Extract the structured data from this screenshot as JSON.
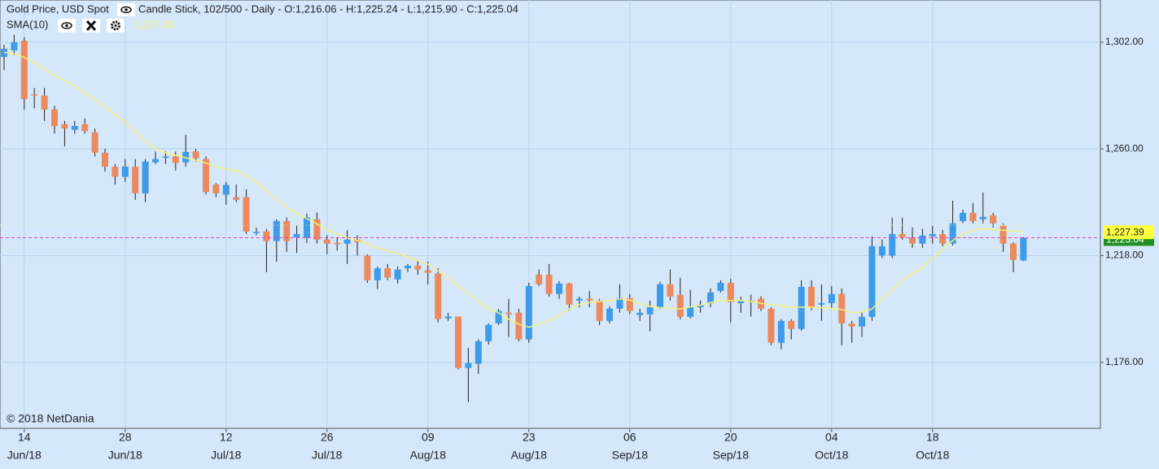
{
  "chart_data": {
    "type": "candlestick",
    "title": "Gold Price, USD Spot",
    "subtitle": "Candle Stick, 102/500 - Daily - O:1,216.06 - H:1,225.24 - L:1,215.90 - C:1,225.04",
    "copyright": "© 2018 NetDania",
    "up_color": "#3d9be9",
    "down_color": "#eb8a5e",
    "categories": [
      null,
      null,
      [
        "14",
        "Jun/18"
      ],
      null,
      null,
      null,
      null,
      null,
      null,
      null,
      null,
      null,
      [
        "28",
        "Jun/18"
      ],
      null,
      null,
      null,
      null,
      null,
      null,
      null,
      null,
      null,
      [
        "12",
        "Jul/18"
      ],
      null,
      null,
      null,
      null,
      null,
      null,
      null,
      null,
      null,
      [
        "26",
        "Jul/18"
      ],
      null,
      null,
      null,
      null,
      null,
      null,
      null,
      null,
      null,
      [
        "09",
        "Aug/18"
      ],
      null,
      null,
      null,
      null,
      null,
      null,
      null,
      null,
      null,
      [
        "23",
        "Aug/18"
      ],
      null,
      null,
      null,
      null,
      null,
      null,
      null,
      null,
      null,
      [
        "06",
        "Sep/18"
      ],
      null,
      null,
      null,
      null,
      null,
      null,
      null,
      null,
      null,
      [
        "20",
        "Sep/18"
      ],
      null,
      null,
      null,
      null,
      null,
      null,
      null,
      null,
      null,
      [
        "04",
        "Oct/18"
      ],
      null,
      null,
      null,
      null,
      null,
      null,
      null,
      null,
      null,
      [
        "18",
        "Oct/18"
      ],
      null,
      null,
      null,
      null,
      null,
      null,
      null,
      null,
      null
    ],
    "open": [
      1296.2,
      1298.8,
      1302.6,
      1281.5,
      1281,
      1275.5,
      1269.7,
      1267.5,
      1269.7,
      1266.5,
      1258.5,
      1253,
      1249,
      1253,
      1242.5,
      1254.7,
      1256.5,
      1257,
      1254.7,
      1259,
      1256,
      1246,
      1242,
      1241,
      1241,
      1227,
      1227.5,
      1223.7,
      1231.6,
      1225.2,
      1225,
      1232.3,
      1224.3,
      1223,
      1222.7,
      1224.3,
      1218,
      1208.3,
      1213,
      1208.6,
      1213,
      1214,
      1212.2,
      1210.9,
      1193.3,
      1194,
      1173.8,
      1175.4,
      1184.3,
      1191.3,
      1195.5,
      1195.5,
      1185,
      1210.5,
      1210.5,
      1202.9,
      1207,
      1200.3,
      1201,
      1200.3,
      1192.3,
      1197.1,
      1201.3,
      1194.6,
      1194.9,
      1197.7,
      1206.7,
      1202.6,
      1193.9,
      1197.7,
      1199.3,
      1204.1,
      1207.3,
      1199.3,
      1200.3,
      1201,
      1197.1,
      1183.7,
      1192.3,
      1189.1,
      1205.7,
      1198.7,
      1199.3,
      1202.9,
      1191.3,
      1190.1,
      1193.9,
      1218,
      1218,
      1226.5,
      1225.2,
      1222.7,
      1225.6,
      1226.5,
      1222.7,
      1231.6,
      1234.8,
      1232.3,
      1233.9,
      1229.7,
      1222.7,
      1216.06
    ],
    "high": [
      1301,
      1305,
      1304,
      1284,
      1284,
      1277,
      1271,
      1271,
      1272,
      1268,
      1260,
      1254,
      1256,
      1256,
      1256,
      1259,
      1259,
      1259,
      1265.5,
      1260,
      1257,
      1246.5,
      1247,
      1246,
      1244,
      1229,
      1228.5,
      1232.3,
      1233,
      1230,
      1234.5,
      1235,
      1226,
      1225,
      1228,
      1226,
      1218.5,
      1213.7,
      1214.7,
      1213.7,
      1214.7,
      1216.3,
      1215.6,
      1213,
      1195.5,
      1194,
      1181.7,
      1185,
      1191.3,
      1197,
      1201,
      1197,
      1207.3,
      1212.5,
      1214.7,
      1208,
      1207.3,
      1201.9,
      1204.1,
      1201,
      1198,
      1206.7,
      1202.9,
      1197,
      1200.3,
      1207.7,
      1212.5,
      1209.3,
      1204.5,
      1200.3,
      1205.1,
      1208.3,
      1208.9,
      1201.9,
      1202.6,
      1202,
      1197.7,
      1193,
      1193,
      1208.3,
      1208.3,
      1206.7,
      1206,
      1205.1,
      1192.3,
      1195.5,
      1225.6,
      1224.3,
      1232.9,
      1232.9,
      1229.1,
      1228.5,
      1229.7,
      1228.1,
      1239.6,
      1236.1,
      1238.7,
      1242.8,
      1234.8,
      1230.7,
      1223.3,
      1225.24
    ],
    "low": [
      1291,
      1297,
      1275.5,
      1276,
      1271,
      1266,
      1261,
      1266,
      1266,
      1257,
      1251,
      1246,
      1247,
      1240,
      1239,
      1254,
      1254,
      1251.5,
      1253,
      1255,
      1242,
      1241,
      1238,
      1239,
      1226.5,
      1226,
      1211.5,
      1215.6,
      1219.5,
      1219,
      1223,
      1222.7,
      1218.5,
      1220,
      1214.7,
      1218,
      1207.3,
      1204.8,
      1208.3,
      1207,
      1211.5,
      1210.5,
      1206.7,
      1191.7,
      1192.3,
      1173.2,
      1160.3,
      1171.5,
      1183,
      1190.7,
      1185.9,
      1184.3,
      1183.7,
      1206,
      1201.9,
      1201,
      1196.5,
      1197.7,
      1197.7,
      1190.7,
      1191.3,
      1195.5,
      1194.9,
      1192.3,
      1188.2,
      1197,
      1200.3,
      1192.9,
      1193.3,
      1195.5,
      1197.7,
      1203.5,
      1191.7,
      1195.5,
      1194,
      1196.2,
      1182.7,
      1181.1,
      1185,
      1188.5,
      1196.5,
      1192.3,
      1197.1,
      1182.7,
      1183.7,
      1185.9,
      1192.3,
      1217,
      1217,
      1224.3,
      1221.1,
      1221.1,
      1222.7,
      1221.7,
      1222,
      1230.7,
      1230.7,
      1230.7,
      1229.1,
      1219.5,
      1211.5,
      1215.9
    ],
    "close": [
      1299.4,
      1302,
      1279.6,
      1281,
      1275.5,
      1269,
      1268,
      1269,
      1267,
      1258.5,
      1253,
      1249,
      1253,
      1242.5,
      1255,
      1256,
      1257,
      1254.5,
      1258.8,
      1256.3,
      1243,
      1242.5,
      1245.8,
      1240,
      1227.5,
      1227.3,
      1223.7,
      1231.6,
      1223.7,
      1226.5,
      1233,
      1224.3,
      1222.7,
      1222.4,
      1224.3,
      1223.3,
      1208.3,
      1213,
      1209.3,
      1212.5,
      1214,
      1212.5,
      1211.2,
      1193,
      1194,
      1173.8,
      1175.7,
      1184.3,
      1190.7,
      1196.2,
      1194.9,
      1185,
      1206,
      1206.7,
      1202.9,
      1207,
      1198.7,
      1201,
      1200.3,
      1192.3,
      1197.1,
      1201.3,
      1196.2,
      1195.5,
      1197.7,
      1206.7,
      1201.9,
      1193.9,
      1197.7,
      1198.7,
      1203.5,
      1207.3,
      1199.7,
      1200.3,
      1199.7,
      1197.1,
      1183.7,
      1192.3,
      1189.1,
      1205.7,
      1197.7,
      1199.3,
      1202.9,
      1191.3,
      1190.1,
      1193.9,
      1221.7,
      1221.7,
      1226.5,
      1225.2,
      1222.7,
      1225.9,
      1226.5,
      1222.7,
      1230.7,
      1234.8,
      1231.6,
      1233.2,
      1230.7,
      1222.7,
      1216.3,
      1225.04
    ],
    "last_close_label": "1,225.04",
    "series": [
      {
        "name": "SMA(10)",
        "color": "#f4f27a",
        "last_label": "1,227.39",
        "values": [
          1298,
          1297.5,
          1296,
          1294,
          1291.5,
          1289,
          1287,
          1284.5,
          1282,
          1279.5,
          1276.5,
          1273.5,
          1270.5,
          1267,
          1263,
          1260,
          1258.5,
          1257.5,
          1256.5,
          1255.5,
          1254.5,
          1253,
          1252,
          1251.5,
          1249.5,
          1247,
          1243.5,
          1240,
          1237,
          1234.5,
          1232.5,
          1230.5,
          1228,
          1226.5,
          1225,
          1224,
          1222.5,
          1221,
          1220,
          1219,
          1217.5,
          1216,
          1214.5,
          1212,
          1209.5,
          1206,
          1203,
          1200,
          1197,
          1195.5,
          1193,
          1191,
          1189.8,
          1191,
          1192.3,
          1194.5,
          1197,
          1198.7,
          1199.5,
          1200,
          1200.3,
          1201,
          1200.5,
          1199,
          1198,
          1197.5,
          1197.3,
          1197,
          1197.8,
          1198.5,
          1199.5,
          1200.3,
          1200.3,
          1200.3,
          1200,
          1199.2,
          1198.7,
          1198.3,
          1197.7,
          1197.7,
          1197.7,
          1197.5,
          1197.2,
          1196.8,
          1195.5,
          1195.8,
          1197,
          1201,
          1204.5,
          1208.3,
          1211,
          1213.5,
          1217,
          1220.5,
          1224,
          1226.5,
          1228,
          1228.5,
          1228.3,
          1228,
          1227.6,
          1227.39
        ]
      }
    ],
    "ylim": [
      1150,
      1318.6
    ],
    "yticks": [
      {
        "value": 1302,
        "label": "1,302.00"
      },
      {
        "value": 1260,
        "label": "1,260.00"
      },
      {
        "value": 1218,
        "label": "1,218.00"
      },
      {
        "value": 1176,
        "label": "1,176.00"
      }
    ],
    "grid": true
  }
}
